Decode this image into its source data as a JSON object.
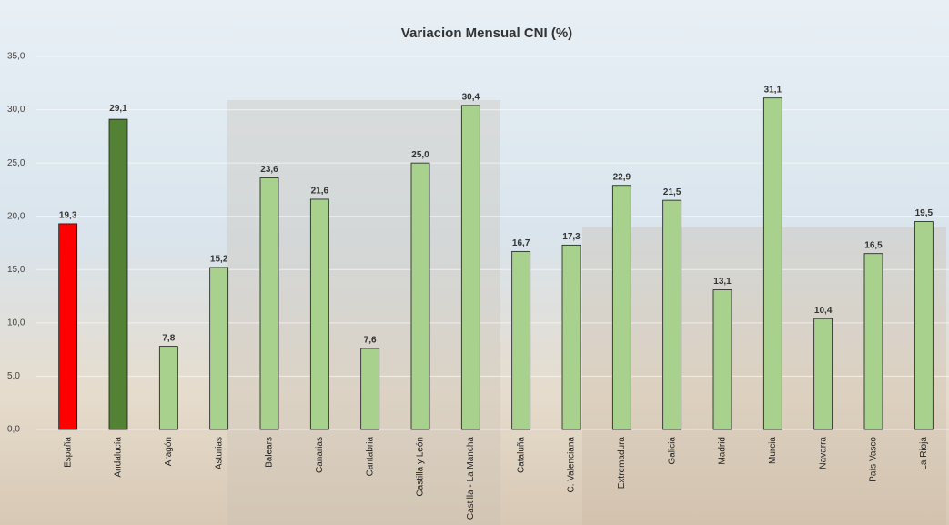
{
  "chart_data": {
    "type": "bar",
    "title": "Variacion Mensual CNI (%)",
    "categories": [
      "España",
      "Andalucía",
      "Aragón",
      "Asturias",
      "Balears",
      "Canarias",
      "Cantabria",
      "Castilla y León",
      "Castilla - La Mancha",
      "Cataluña",
      "C. Valenciana",
      "Extremadura",
      "Galicia",
      "Madrid",
      "Murcia",
      "Navarra",
      "País Vasco",
      "La Rioja"
    ],
    "values": [
      19.3,
      29.1,
      7.8,
      15.2,
      23.6,
      21.6,
      7.6,
      25.0,
      30.4,
      16.7,
      17.3,
      22.9,
      21.5,
      13.1,
      31.1,
      10.4,
      16.5,
      19.5
    ],
    "value_labels": [
      "19,3",
      "29,1",
      "7,8",
      "15,2",
      "23,6",
      "21,6",
      "7,6",
      "25,0",
      "30,4",
      "16,7",
      "17,3",
      "22,9",
      "21,5",
      "13,1",
      "31,1",
      "10,4",
      "16,5",
      "19,5"
    ],
    "colors": [
      "#ff0000",
      "#548235",
      "#a9d18e",
      "#a9d18e",
      "#a9d18e",
      "#a9d18e",
      "#a9d18e",
      "#a9d18e",
      "#a9d18e",
      "#a9d18e",
      "#a9d18e",
      "#a9d18e",
      "#a9d18e",
      "#a9d18e",
      "#a9d18e",
      "#a9d18e",
      "#a9d18e",
      "#a9d18e"
    ],
    "ylim": [
      0,
      35
    ],
    "yticks": [
      {
        "value": 0,
        "label": "0,0"
      },
      {
        "value": 5,
        "label": "5,0"
      },
      {
        "value": 10,
        "label": "10,0"
      },
      {
        "value": 15,
        "label": "15,0"
      },
      {
        "value": 20,
        "label": "20,0"
      },
      {
        "value": 25,
        "label": "25,0"
      },
      {
        "value": 30,
        "label": "30,0"
      },
      {
        "value": 35,
        "label": "35,0"
      }
    ],
    "grid": true
  }
}
